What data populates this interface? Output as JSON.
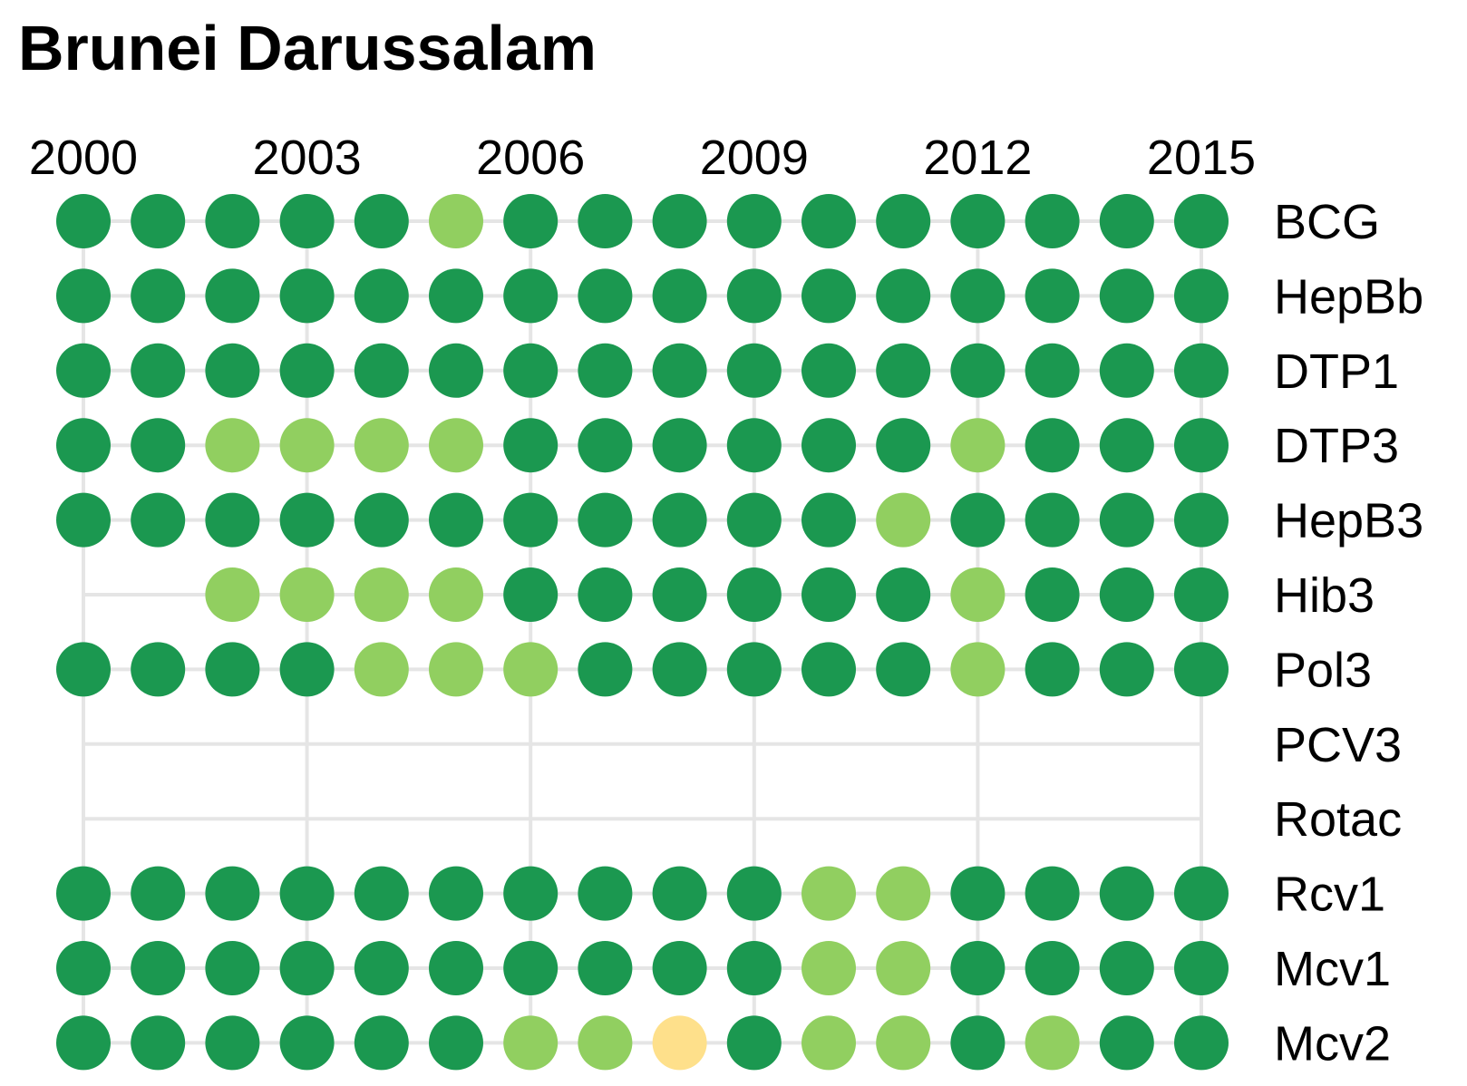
{
  "chart_data": {
    "type": "dot-matrix",
    "title": "Brunei Darussalam",
    "x": [
      2000,
      2001,
      2002,
      2003,
      2004,
      2005,
      2006,
      2007,
      2008,
      2009,
      2010,
      2011,
      2012,
      2013,
      2014,
      2015
    ],
    "x_tick_labels": [
      "2000",
      "2003",
      "2006",
      "2009",
      "2012",
      "2015"
    ],
    "x_axis_position": "top",
    "grid": true,
    "colors": {
      "dark_green": "#1b9850",
      "light_green": "#91cf60",
      "yellow": "#fee08b",
      "grid": "#e5e5e5"
    },
    "rows": [
      {
        "label": "BCG",
        "values": [
          "dark_green",
          "dark_green",
          "dark_green",
          "dark_green",
          "dark_green",
          "light_green",
          "dark_green",
          "dark_green",
          "dark_green",
          "dark_green",
          "dark_green",
          "dark_green",
          "dark_green",
          "dark_green",
          "dark_green",
          "dark_green"
        ]
      },
      {
        "label": "HepBb",
        "values": [
          "dark_green",
          "dark_green",
          "dark_green",
          "dark_green",
          "dark_green",
          "dark_green",
          "dark_green",
          "dark_green",
          "dark_green",
          "dark_green",
          "dark_green",
          "dark_green",
          "dark_green",
          "dark_green",
          "dark_green",
          "dark_green"
        ]
      },
      {
        "label": "DTP1",
        "values": [
          "dark_green",
          "dark_green",
          "dark_green",
          "dark_green",
          "dark_green",
          "dark_green",
          "dark_green",
          "dark_green",
          "dark_green",
          "dark_green",
          "dark_green",
          "dark_green",
          "dark_green",
          "dark_green",
          "dark_green",
          "dark_green"
        ]
      },
      {
        "label": "DTP3",
        "values": [
          "dark_green",
          "dark_green",
          "light_green",
          "light_green",
          "light_green",
          "light_green",
          "dark_green",
          "dark_green",
          "dark_green",
          "dark_green",
          "dark_green",
          "dark_green",
          "light_green",
          "dark_green",
          "dark_green",
          "dark_green"
        ]
      },
      {
        "label": "HepB3",
        "values": [
          "dark_green",
          "dark_green",
          "dark_green",
          "dark_green",
          "dark_green",
          "dark_green",
          "dark_green",
          "dark_green",
          "dark_green",
          "dark_green",
          "dark_green",
          "light_green",
          "dark_green",
          "dark_green",
          "dark_green",
          "dark_green"
        ]
      },
      {
        "label": "Hib3",
        "values": [
          null,
          null,
          "light_green",
          "light_green",
          "light_green",
          "light_green",
          "dark_green",
          "dark_green",
          "dark_green",
          "dark_green",
          "dark_green",
          "dark_green",
          "light_green",
          "dark_green",
          "dark_green",
          "dark_green"
        ]
      },
      {
        "label": "Pol3",
        "values": [
          "dark_green",
          "dark_green",
          "dark_green",
          "dark_green",
          "light_green",
          "light_green",
          "light_green",
          "dark_green",
          "dark_green",
          "dark_green",
          "dark_green",
          "dark_green",
          "light_green",
          "dark_green",
          "dark_green",
          "dark_green"
        ]
      },
      {
        "label": "PCV3",
        "values": [
          null,
          null,
          null,
          null,
          null,
          null,
          null,
          null,
          null,
          null,
          null,
          null,
          null,
          null,
          null,
          null
        ]
      },
      {
        "label": "Rotac",
        "values": [
          null,
          null,
          null,
          null,
          null,
          null,
          null,
          null,
          null,
          null,
          null,
          null,
          null,
          null,
          null,
          null
        ]
      },
      {
        "label": "Rcv1",
        "values": [
          "dark_green",
          "dark_green",
          "dark_green",
          "dark_green",
          "dark_green",
          "dark_green",
          "dark_green",
          "dark_green",
          "dark_green",
          "dark_green",
          "light_green",
          "light_green",
          "dark_green",
          "dark_green",
          "dark_green",
          "dark_green"
        ]
      },
      {
        "label": "Mcv1",
        "values": [
          "dark_green",
          "dark_green",
          "dark_green",
          "dark_green",
          "dark_green",
          "dark_green",
          "dark_green",
          "dark_green",
          "dark_green",
          "dark_green",
          "light_green",
          "light_green",
          "dark_green",
          "dark_green",
          "dark_green",
          "dark_green"
        ]
      },
      {
        "label": "Mcv2",
        "values": [
          "dark_green",
          "dark_green",
          "dark_green",
          "dark_green",
          "dark_green",
          "dark_green",
          "light_green",
          "light_green",
          "yellow",
          "dark_green",
          "light_green",
          "light_green",
          "dark_green",
          "light_green",
          "dark_green",
          "dark_green"
        ]
      }
    ]
  }
}
